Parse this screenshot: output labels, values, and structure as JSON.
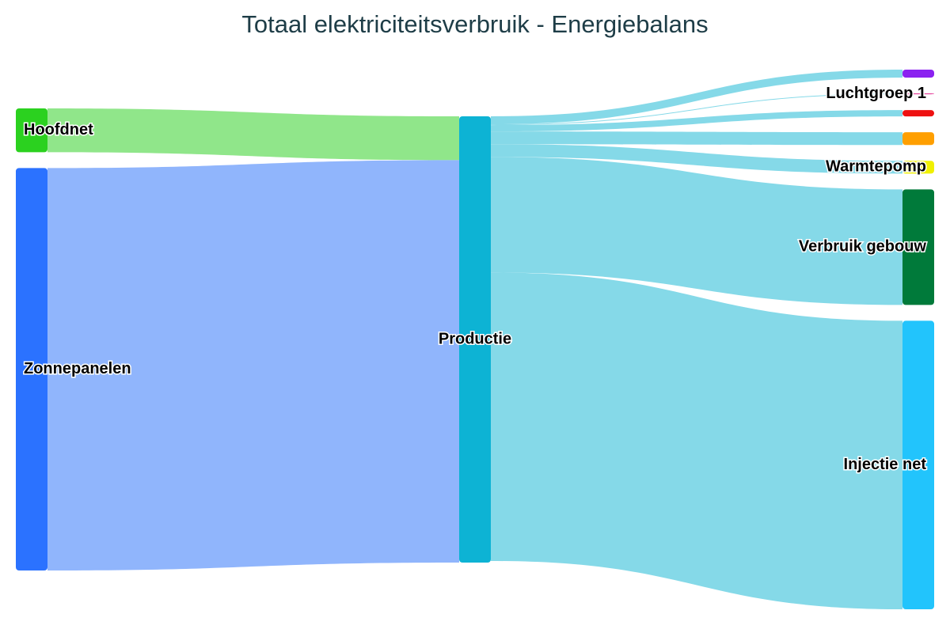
{
  "chart_data": {
    "type": "sankey",
    "title": "Totaal elektriciteitsverbruik - Energiebalans",
    "nodes": [
      {
        "name": "Hoofdnet",
        "color": "#2bd11f"
      },
      {
        "name": "Zonnepanelen",
        "color": "#2b72ff"
      },
      {
        "name": "Productie",
        "color": "#0db3d4"
      },
      {
        "name": null,
        "color": "#8b22f0"
      },
      {
        "name": "Luchtgroep 1",
        "color": "#e0218a"
      },
      {
        "name": null,
        "color": "#ee1111"
      },
      {
        "name": null,
        "color": "#ff9f00"
      },
      {
        "name": "Warmtepomp",
        "color": "#f0f000"
      },
      {
        "name": "Verbruik gebouw",
        "color": "#007a3a"
      },
      {
        "name": "Injectie net",
        "color": "#22c4fc"
      }
    ],
    "links": [
      {
        "source": 0,
        "target": 2,
        "value": 55,
        "color": "#90e68a"
      },
      {
        "source": 1,
        "target": 2,
        "value": 505,
        "color": "#90b5fc"
      },
      {
        "source": 2,
        "target": 3,
        "value": 10,
        "color": "#85d9e8"
      },
      {
        "source": 2,
        "target": 4,
        "value": 1,
        "color": "#85d9e8"
      },
      {
        "source": 2,
        "target": 5,
        "value": 8,
        "color": "#85d9e8"
      },
      {
        "source": 2,
        "target": 6,
        "value": 16,
        "color": "#85d9e8"
      },
      {
        "source": 2,
        "target": 7,
        "value": 16,
        "color": "#85d9e8"
      },
      {
        "source": 2,
        "target": 8,
        "value": 145,
        "color": "#85d9e8"
      },
      {
        "source": 2,
        "target": 9,
        "value": 362,
        "color": "#85d9e8"
      }
    ]
  }
}
